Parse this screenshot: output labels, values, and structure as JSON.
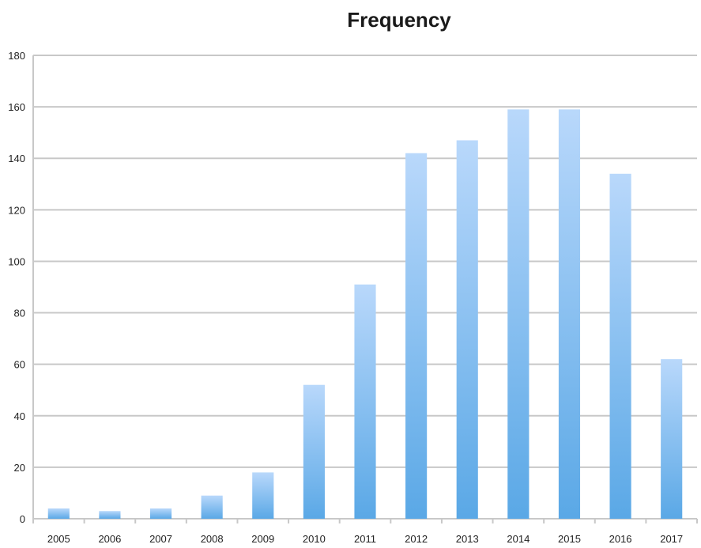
{
  "chart_data": {
    "type": "bar",
    "title": "Frequency",
    "xlabel": "",
    "ylabel": "",
    "categories": [
      "2005",
      "2006",
      "2007",
      "2008",
      "2009",
      "2010",
      "2011",
      "2012",
      "2013",
      "2014",
      "2015",
      "2016",
      "2017"
    ],
    "values": [
      4,
      3,
      4,
      9,
      18,
      52,
      91,
      142,
      147,
      159,
      159,
      134,
      62
    ],
    "ylim": [
      0,
      180
    ],
    "yticks": [
      0,
      20,
      40,
      60,
      80,
      100,
      120,
      140,
      160,
      180
    ],
    "grid": true,
    "legend": "none",
    "colors": {
      "bar_top": "#b9d8fb",
      "bar_bottom": "#5aa8e6",
      "grid": "#c8c8c8"
    }
  }
}
